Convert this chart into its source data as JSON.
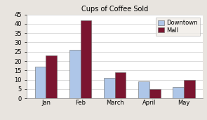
{
  "title": "Cups of Coffee Sold",
  "categories": [
    "Jan",
    "Feb",
    "March",
    "April",
    "May"
  ],
  "series": [
    {
      "label": "Downtown",
      "values": [
        17,
        26,
        11,
        9,
        6
      ],
      "color": "#aec6e8"
    },
    {
      "label": "Mall",
      "values": [
        23,
        42,
        14,
        5,
        10
      ],
      "color": "#7b1530"
    }
  ],
  "ylim": [
    0,
    45
  ],
  "yticks": [
    0,
    5,
    10,
    15,
    20,
    25,
    30,
    35,
    40,
    45
  ],
  "bar_width": 0.32,
  "background_color": "#e8e4df",
  "plot_background_color": "#ffffff",
  "title_fontsize": 7,
  "tick_fontsize": 6,
  "legend_fontsize": 6
}
